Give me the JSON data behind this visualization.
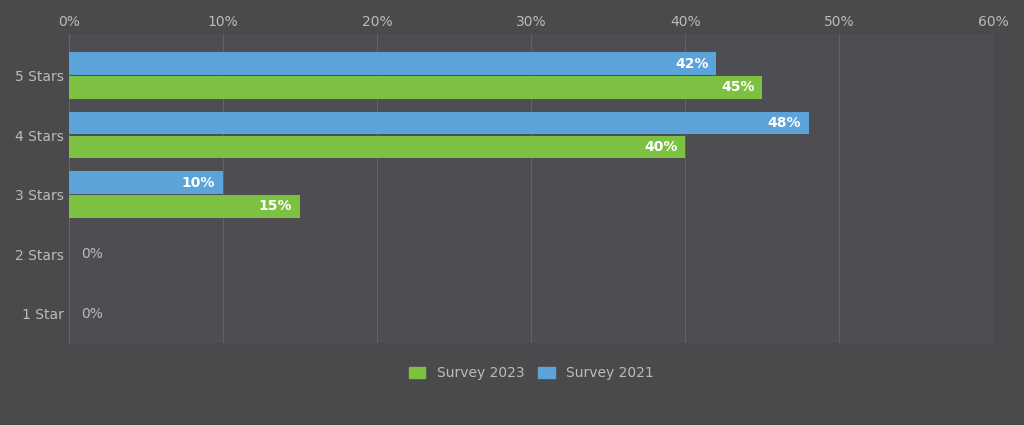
{
  "categories": [
    "5 Stars",
    "4 Stars",
    "3 Stars",
    "2 Stars",
    "1 Star"
  ],
  "survey_2023": [
    45,
    40,
    15,
    0,
    0
  ],
  "survey_2021": [
    42,
    48,
    10,
    0,
    0
  ],
  "color_2023": "#7DC142",
  "color_2021": "#5BA3D9",
  "background_color": "#4A4A4D",
  "plot_bg_color": "#4E4E52",
  "text_color": "#BBBBBB",
  "grid_color": "#666668",
  "xlim": [
    0,
    60
  ],
  "xticks": [
    0,
    10,
    20,
    30,
    40,
    50,
    60
  ],
  "xtick_labels": [
    "0%",
    "10%",
    "20%",
    "30%",
    "40%",
    "50%",
    "60%"
  ],
  "bar_height": 0.38,
  "bar_gap": 0.02,
  "label_2023": "Survey 2023",
  "label_2021": "Survey 2021",
  "tick_fontsize": 10,
  "label_fontsize": 10
}
